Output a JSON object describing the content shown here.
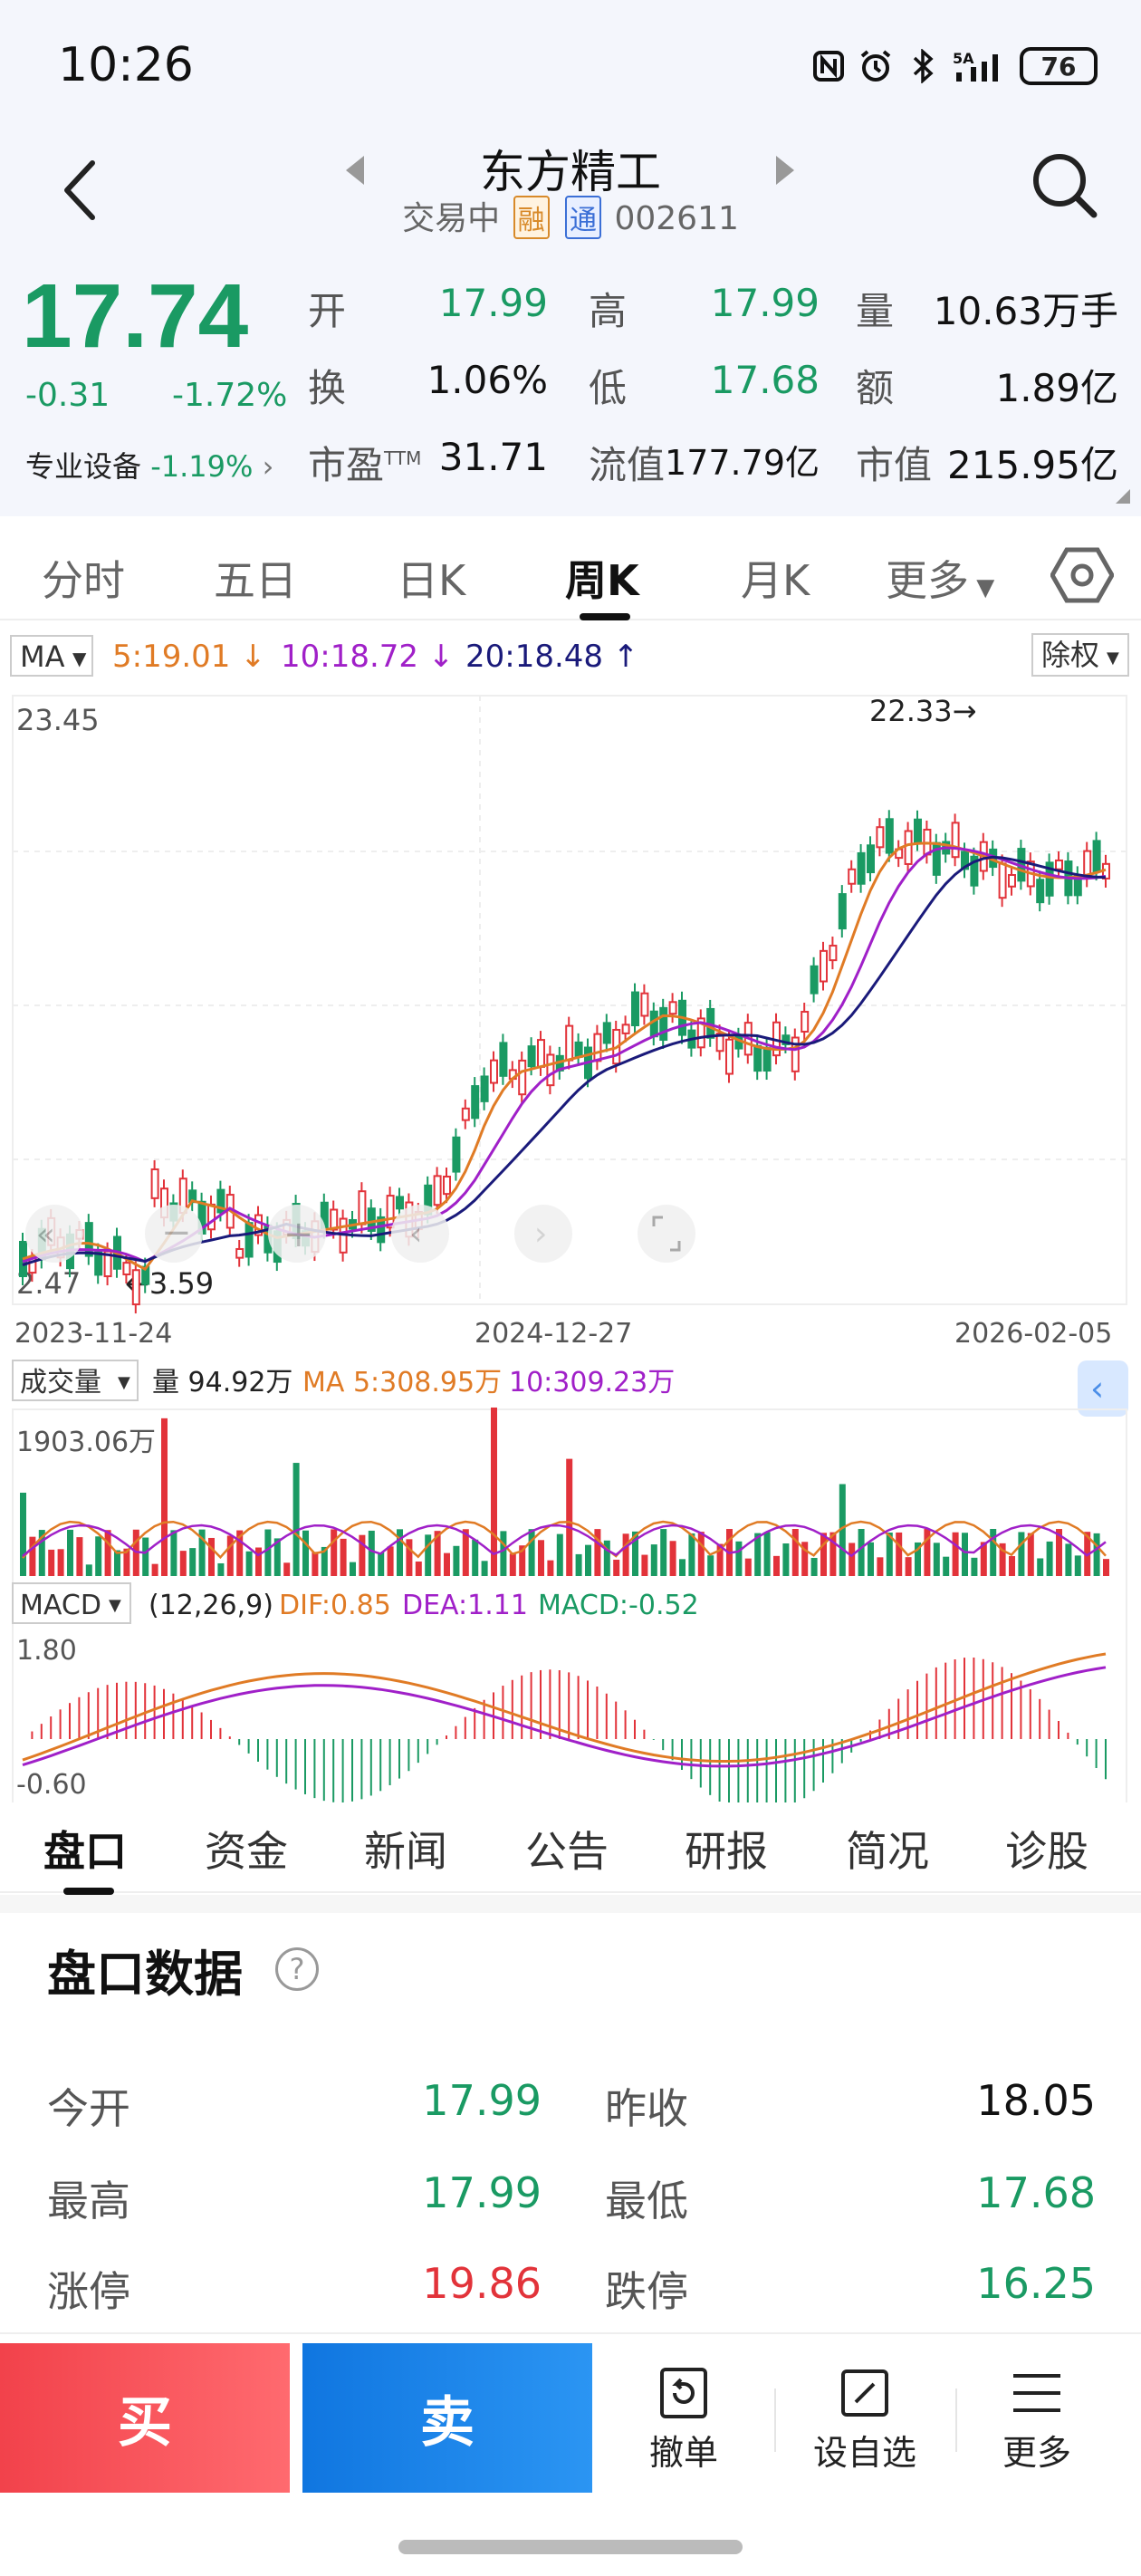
{
  "status_bar": {
    "time": "10:26",
    "battery": "76",
    "network": "5A"
  },
  "header": {
    "name": "东方精工",
    "status": "交易中",
    "tag_rong": "融",
    "tag_tong": "通",
    "code": "002611"
  },
  "quote": {
    "price": "17.74",
    "change": "-0.31",
    "change_pct": "-1.72%",
    "sector": "专业设备",
    "sector_pct": "-1.19%",
    "rows": [
      [
        {
          "l": "开",
          "v": "17.99",
          "c": "green"
        },
        {
          "l": "高",
          "v": "17.99",
          "c": "green"
        },
        {
          "l": "量",
          "v": "10.63万手",
          "c": "black"
        }
      ],
      [
        {
          "l": "换",
          "v": "1.06%",
          "c": "black"
        },
        {
          "l": "低",
          "v": "17.68",
          "c": "green"
        },
        {
          "l": "额",
          "v": "1.89亿",
          "c": "black"
        }
      ],
      [
        {
          "l": "市盈TTM",
          "v": "31.71",
          "c": "black"
        },
        {
          "l": "流值",
          "v": "177.79亿",
          "c": "black"
        },
        {
          "l": "市值",
          "v": "215.95亿",
          "c": "black"
        }
      ]
    ]
  },
  "k_tabs": [
    "分时",
    "五日",
    "日K",
    "周K",
    "月K",
    "更多"
  ],
  "k_tabs_active": "周K",
  "ma_bar": {
    "label": "MA",
    "ma5": "5:19.01",
    "ma10": "10:18.72",
    "ma20": "20:18.48",
    "adjust": "除权"
  },
  "chart_data": [
    {
      "type": "candlestick",
      "title": "周K",
      "ylim": [
        2.47,
        23.45
      ],
      "y_top_label": "23.45",
      "y_bottom_label": "2.47",
      "x_labels": [
        "2023-11-24",
        "2024-12-27",
        "2026-02-05"
      ],
      "high_annotation": "22.33→",
      "low_annotation": "←3.59",
      "series": [
        {
          "name": "MA5",
          "color": "#e07b25",
          "last": 19.01
        },
        {
          "name": "MA10",
          "color": "#a020c8",
          "last": 18.72
        },
        {
          "name": "MA20",
          "color": "#1a1a7a",
          "last": 18.48
        }
      ]
    },
    {
      "type": "bar",
      "title": "成交量",
      "volume": "量 94.92万",
      "ma5": "MA 5:308.95万",
      "ma10": "10:309.23万",
      "y_top_label": "1903.06万"
    },
    {
      "type": "bar",
      "title": "MACD",
      "params": "(12,26,9)",
      "dif": "DIF:0.85",
      "dea": "DEA:1.11",
      "macd": "MACD:-0.52",
      "y_top_label": "1.80",
      "y_bottom_label": "-0.60"
    }
  ],
  "bottom_tabs": [
    "盘口",
    "资金",
    "新闻",
    "公告",
    "研报",
    "简况",
    "诊股"
  ],
  "bottom_tabs_active": "盘口",
  "panel": {
    "title": "盘口数据",
    "rows": [
      {
        "l1": "今开",
        "v1": "17.99",
        "c1": "green",
        "l2": "昨收",
        "v2": "18.05",
        "c2": "black"
      },
      {
        "l1": "最高",
        "v1": "17.99",
        "c1": "green",
        "l2": "最低",
        "v2": "17.68",
        "c2": "green"
      },
      {
        "l1": "涨停",
        "v1": "19.86",
        "c1": "red",
        "l2": "跌停",
        "v2": "16.25",
        "c2": "green"
      }
    ]
  },
  "actions": {
    "buy": "买",
    "sell": "卖",
    "cancel": "撤单",
    "watchlist": "设自选",
    "more": "更多"
  }
}
